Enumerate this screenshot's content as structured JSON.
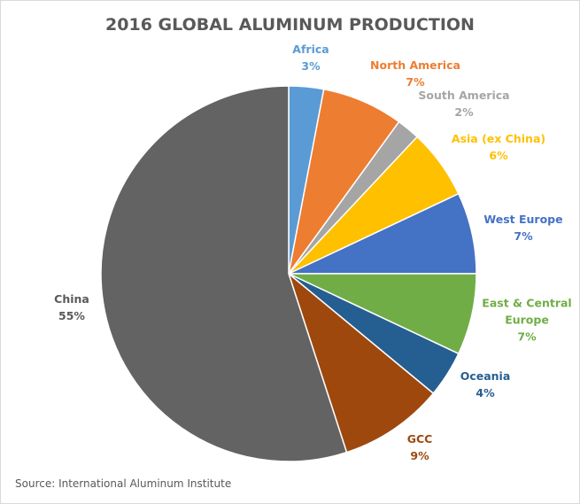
{
  "chart_data": {
    "type": "pie",
    "title": "2016 GLOBAL ALUMINUM PRODUCTION",
    "categories": [
      "Africa",
      "North America",
      "South America",
      "Asia (ex China)",
      "West Europe",
      "East & Central Europe",
      "Oceania",
      "GCC",
      "China"
    ],
    "values": [
      3,
      7,
      2,
      6,
      7,
      7,
      4,
      9,
      55
    ],
    "value_labels": [
      "3%",
      "7%",
      "2%",
      "6%",
      "7%",
      "7%",
      "4%",
      "9%",
      "55%"
    ],
    "colors": [
      "#5b9bd5",
      "#ed7d31",
      "#a5a5a5",
      "#ffc000",
      "#4472c4",
      "#70ad47",
      "#255e91",
      "#9e480e",
      "#636363"
    ],
    "source": "Source: International Aluminum Institute"
  }
}
